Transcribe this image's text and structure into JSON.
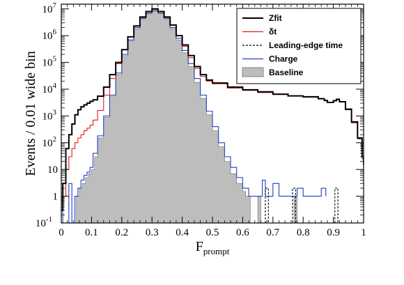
{
  "chart_data": {
    "type": "histogram",
    "xlabel": "F",
    "xlabel_sub": "prompt",
    "ylabel": "Events / 0.01 wide bin",
    "y_scale": "log",
    "xlim": [
      0,
      1
    ],
    "ylim": [
      0.1,
      15000000
    ],
    "x_ticks": [
      {
        "value": 0,
        "label": "0"
      },
      {
        "value": 0.1,
        "label": "0.1"
      },
      {
        "value": 0.2,
        "label": "0.2"
      },
      {
        "value": 0.3,
        "label": "0.3"
      },
      {
        "value": 0.4,
        "label": "0.4"
      },
      {
        "value": 0.5,
        "label": "0.5"
      },
      {
        "value": 0.6,
        "label": "0.6"
      },
      {
        "value": 0.7,
        "label": "0.7"
      },
      {
        "value": 0.8,
        "label": "0.8"
      },
      {
        "value": 0.9,
        "label": "0.9"
      },
      {
        "value": 1,
        "label": "1"
      }
    ],
    "y_ticks": [
      {
        "value": 0.1,
        "base": "10",
        "exp": "-1"
      },
      {
        "value": 1,
        "base": "1",
        "exp": ""
      },
      {
        "value": 10,
        "base": "10",
        "exp": ""
      },
      {
        "value": 100,
        "base": "10",
        "exp": "2"
      },
      {
        "value": 1000,
        "base": "10",
        "exp": "3"
      },
      {
        "value": 10000,
        "base": "10",
        "exp": "4"
      },
      {
        "value": 100000,
        "base": "10",
        "exp": "5"
      },
      {
        "value": 1000000,
        "base": "10",
        "exp": "6"
      },
      {
        "value": 10000000,
        "base": "10",
        "exp": "7"
      }
    ],
    "legend": {
      "position": "top-right",
      "entries": [
        {
          "label": "Zfit",
          "series": "zfit"
        },
        {
          "label": "δt",
          "series": "dt"
        },
        {
          "label": "Leading-edge time",
          "series": "leading"
        },
        {
          "label": "Charge",
          "series": "charge"
        },
        {
          "label": "Baseline",
          "series": "baseline"
        }
      ]
    },
    "series": [
      {
        "id": "zfit",
        "name": "Zfit",
        "color": "#000000",
        "style": "step-solid-thick",
        "points": [
          [
            0.0,
            0.3
          ],
          [
            0.005,
            3
          ],
          [
            0.015,
            60
          ],
          [
            0.025,
            200
          ],
          [
            0.035,
            500
          ],
          [
            0.045,
            1100
          ],
          [
            0.055,
            1700
          ],
          [
            0.065,
            2200
          ],
          [
            0.075,
            2600
          ],
          [
            0.085,
            3000
          ],
          [
            0.095,
            3500
          ],
          [
            0.105,
            4000
          ],
          [
            0.12,
            5500
          ],
          [
            0.14,
            12000
          ],
          [
            0.16,
            35000
          ],
          [
            0.18,
            100000
          ],
          [
            0.2,
            300000
          ],
          [
            0.22,
            900000
          ],
          [
            0.24,
            2300000
          ],
          [
            0.26,
            5000000
          ],
          [
            0.28,
            8000000
          ],
          [
            0.3,
            10000000
          ],
          [
            0.32,
            8000000
          ],
          [
            0.34,
            5000000
          ],
          [
            0.36,
            2500000
          ],
          [
            0.38,
            1000000
          ],
          [
            0.4,
            450000
          ],
          [
            0.42,
            180000
          ],
          [
            0.44,
            70000
          ],
          [
            0.46,
            35000
          ],
          [
            0.48,
            22000
          ],
          [
            0.5,
            17000
          ],
          [
            0.55,
            12000
          ],
          [
            0.6,
            9500
          ],
          [
            0.65,
            8000
          ],
          [
            0.7,
            6500
          ],
          [
            0.75,
            5600
          ],
          [
            0.8,
            5200
          ],
          [
            0.85,
            4400
          ],
          [
            0.87,
            3800
          ],
          [
            0.88,
            3200
          ],
          [
            0.9,
            3700
          ],
          [
            0.91,
            4200
          ],
          [
            0.92,
            3400
          ],
          [
            0.94,
            1800
          ],
          [
            0.96,
            600
          ],
          [
            0.98,
            150
          ],
          [
            0.995,
            30
          ],
          [
            1.0,
            15
          ]
        ]
      },
      {
        "id": "dt",
        "name": "δt",
        "color": "#e41a1c",
        "style": "step-solid",
        "points": [
          [
            0.0,
            0.3
          ],
          [
            0.005,
            1
          ],
          [
            0.015,
            10
          ],
          [
            0.025,
            30
          ],
          [
            0.035,
            60
          ],
          [
            0.045,
            100
          ],
          [
            0.055,
            150
          ],
          [
            0.065,
            200
          ],
          [
            0.075,
            280
          ],
          [
            0.085,
            350
          ],
          [
            0.095,
            450
          ],
          [
            0.105,
            700
          ],
          [
            0.12,
            1600
          ],
          [
            0.14,
            6000
          ],
          [
            0.16,
            25000
          ],
          [
            0.18,
            90000
          ],
          [
            0.2,
            300000
          ],
          [
            0.22,
            900000
          ],
          [
            0.24,
            2300000
          ],
          [
            0.26,
            5000000
          ],
          [
            0.28,
            8000000
          ],
          [
            0.3,
            9600000
          ],
          [
            0.32,
            8000000
          ],
          [
            0.34,
            5000000
          ],
          [
            0.36,
            2500000
          ],
          [
            0.38,
            1000000
          ],
          [
            0.4,
            400000
          ],
          [
            0.42,
            150000
          ],
          [
            0.44,
            60000
          ],
          [
            0.46,
            30000
          ],
          [
            0.48,
            20000
          ],
          [
            0.5,
            16000
          ],
          [
            0.55,
            11000
          ],
          [
            0.6,
            9000
          ],
          [
            0.65,
            7500
          ],
          [
            0.7,
            6300
          ],
          [
            0.75,
            5500
          ],
          [
            0.8,
            5000
          ],
          [
            0.85,
            4300
          ],
          [
            0.87,
            3700
          ],
          [
            0.88,
            3200
          ],
          [
            0.9,
            3600
          ],
          [
            0.91,
            4000
          ],
          [
            0.92,
            3300
          ],
          [
            0.94,
            1700
          ],
          [
            0.96,
            550
          ],
          [
            0.98,
            140
          ],
          [
            0.995,
            25
          ],
          [
            1.0,
            12
          ]
        ]
      },
      {
        "id": "leading",
        "name": "Leading-edge time",
        "color": "#000000",
        "style": "step-dashed",
        "points": [
          [
            0.675,
            0.1
          ],
          [
            0.675,
            2
          ],
          [
            0.685,
            2
          ],
          [
            0.685,
            0.1
          ],
          [
            0.765,
            0.1
          ],
          [
            0.765,
            2
          ],
          [
            0.775,
            2
          ],
          [
            0.775,
            0.1
          ],
          [
            0.905,
            0.1
          ],
          [
            0.905,
            2
          ],
          [
            0.915,
            2
          ],
          [
            0.915,
            0.1
          ]
        ]
      },
      {
        "id": "charge",
        "name": "Charge",
        "color": "#1f3fbf",
        "style": "step-solid",
        "points": [
          [
            0.0,
            0.3
          ],
          [
            0.005,
            0.1
          ],
          [
            0.025,
            0.1
          ],
          [
            0.025,
            3
          ],
          [
            0.035,
            0.1
          ],
          [
            0.045,
            1
          ],
          [
            0.055,
            2
          ],
          [
            0.065,
            4
          ],
          [
            0.075,
            6
          ],
          [
            0.085,
            8
          ],
          [
            0.095,
            12
          ],
          [
            0.105,
            40
          ],
          [
            0.12,
            180
          ],
          [
            0.14,
            1000
          ],
          [
            0.16,
            6000
          ],
          [
            0.18,
            40000
          ],
          [
            0.2,
            200000
          ],
          [
            0.22,
            700000
          ],
          [
            0.24,
            2000000
          ],
          [
            0.26,
            4500000
          ],
          [
            0.28,
            7000000
          ],
          [
            0.3,
            8600000
          ],
          [
            0.32,
            7000000
          ],
          [
            0.34,
            4500000
          ],
          [
            0.36,
            2000000
          ],
          [
            0.38,
            800000
          ],
          [
            0.4,
            280000
          ],
          [
            0.42,
            90000
          ],
          [
            0.44,
            25000
          ],
          [
            0.46,
            6000
          ],
          [
            0.48,
            1500
          ],
          [
            0.5,
            400
          ],
          [
            0.52,
            100
          ],
          [
            0.54,
            30
          ],
          [
            0.56,
            12
          ],
          [
            0.58,
            5
          ],
          [
            0.6,
            2
          ],
          [
            0.62,
            1
          ],
          [
            0.665,
            4
          ],
          [
            0.675,
            1
          ],
          [
            0.7,
            3
          ],
          [
            0.72,
            1
          ],
          [
            0.77,
            1
          ],
          [
            0.78,
            2
          ],
          [
            0.8,
            1
          ],
          [
            0.86,
            2
          ],
          [
            0.875,
            1
          ]
        ]
      },
      {
        "id": "baseline",
        "name": "Baseline",
        "color": "#b3b3b3",
        "style": "filled-step",
        "points": [
          [
            0.005,
            0.1
          ],
          [
            0.05,
            0.1
          ],
          [
            0.05,
            1
          ],
          [
            0.06,
            2
          ],
          [
            0.07,
            3
          ],
          [
            0.08,
            5
          ],
          [
            0.09,
            7
          ],
          [
            0.1,
            10
          ],
          [
            0.11,
            30
          ],
          [
            0.12,
            150
          ],
          [
            0.14,
            900
          ],
          [
            0.16,
            5500
          ],
          [
            0.18,
            35000
          ],
          [
            0.2,
            180000
          ],
          [
            0.22,
            650000
          ],
          [
            0.24,
            1800000
          ],
          [
            0.26,
            4200000
          ],
          [
            0.28,
            6700000
          ],
          [
            0.3,
            8200000
          ],
          [
            0.32,
            6700000
          ],
          [
            0.34,
            4200000
          ],
          [
            0.36,
            1800000
          ],
          [
            0.38,
            700000
          ],
          [
            0.4,
            230000
          ],
          [
            0.42,
            70000
          ],
          [
            0.44,
            18000
          ],
          [
            0.46,
            4500
          ],
          [
            0.48,
            1100
          ],
          [
            0.5,
            280
          ],
          [
            0.52,
            70
          ],
          [
            0.54,
            20
          ],
          [
            0.56,
            7
          ],
          [
            0.58,
            3
          ],
          [
            0.6,
            1.5
          ],
          [
            0.61,
            1
          ],
          [
            0.625,
            0.1
          ],
          [
            0.65,
            0.1
          ],
          [
            0.65,
            1
          ],
          [
            0.66,
            0.1
          ],
          [
            0.77,
            0.1
          ],
          [
            0.77,
            1
          ],
          [
            0.78,
            0.1
          ]
        ]
      }
    ]
  }
}
